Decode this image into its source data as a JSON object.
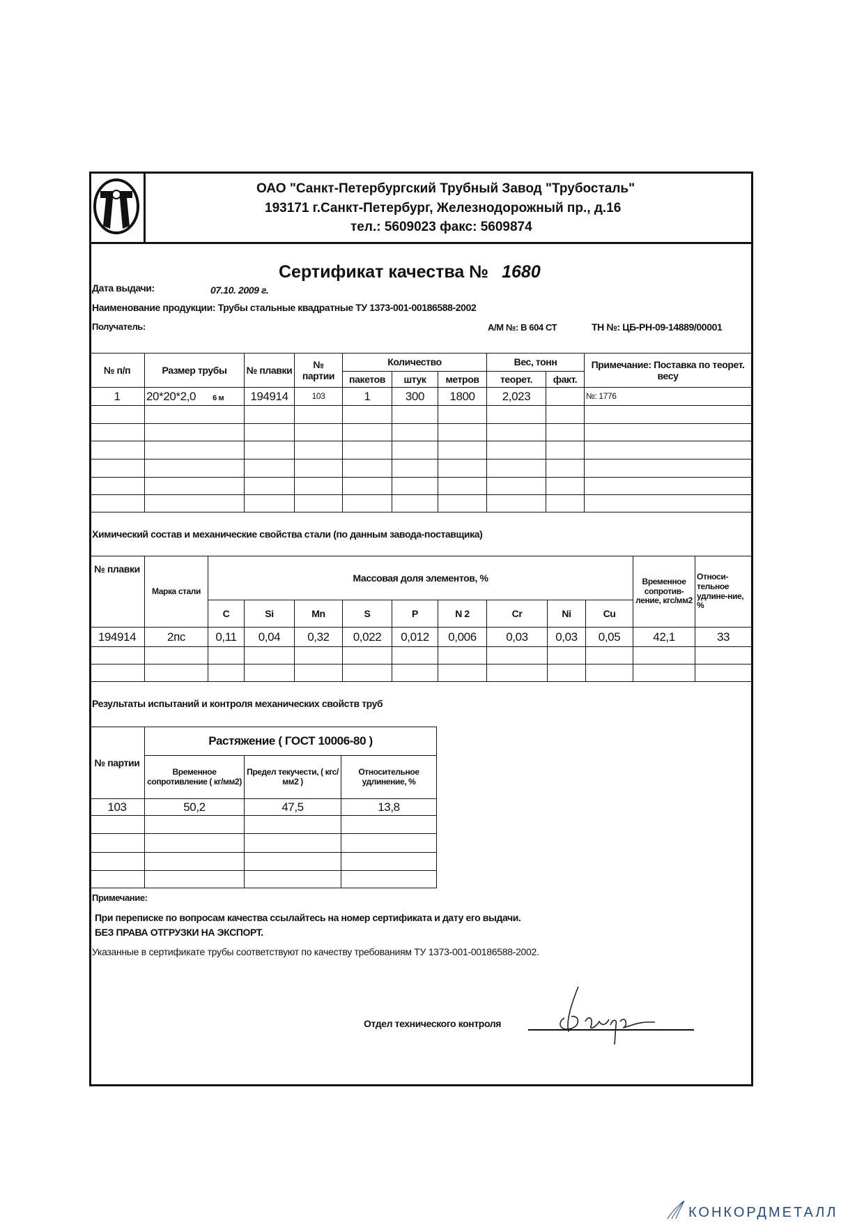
{
  "header": {
    "company": "ОАО \"Санкт-Петербургский Трубный Завод \"Трубосталь\"",
    "address": "193171   г.Санкт-Петербург, Железнодорожный пр., д.16",
    "phones": "тел.: 5609023    факс: 5609874",
    "logo_text": "ТТ"
  },
  "certificate": {
    "title": "Сертификат качества №",
    "number": "1680",
    "date_label": "Дата выдачи:",
    "date_value": "07.10. 2009 г.",
    "product_label": "Наименование продукции: Трубы стальные квадратные ТУ 1373-001-00186588-2002",
    "recipient_label": "Получатель:",
    "am": "А/М №: В 604 СТ",
    "tn": "ТН №: ЦБ-РН-09-14889/00001"
  },
  "shipment_table": {
    "headers": {
      "num": "№ п/п",
      "size": "Размер трубы",
      "melt": "№ плавки",
      "batch": "№ партии",
      "quantity": "Количество",
      "packages": "пакетов",
      "pieces": "штук",
      "meters": "метров",
      "weight": "Вес, тонн",
      "theor": "теорет.",
      "fact": "факт.",
      "note": "Примечание: Поставка по теорет. весу"
    },
    "rows": [
      {
        "num": "1",
        "size": "20*20*2,0",
        "length": "6 м",
        "melt": "194914",
        "batch": "103",
        "packages": "1",
        "pieces": "300",
        "meters": "1800",
        "theor": "2,023",
        "fact": "",
        "note": "№: 1776"
      }
    ]
  },
  "chem_section": {
    "heading": "Химический состав и механические свойства стали (по данным завода-поставщика)",
    "headers": {
      "melt": "№ плавки",
      "grade": "Марка стали",
      "mass": "Массовая доля элементов, %",
      "elements": [
        "C",
        "Si",
        "Mn",
        "S",
        "P",
        "N 2",
        "Cr",
        "Ni",
        "Cu"
      ],
      "strength": "Временное сопротив-ление, кгс/мм2",
      "elong": "Относи-тельное удлине-ние, %"
    },
    "rows": [
      {
        "melt": "194914",
        "grade": "2пс",
        "values": [
          "0,11",
          "0,04",
          "0,32",
          "0,022",
          "0,012",
          "0,006",
          "0,03",
          "0,03",
          "0,05"
        ],
        "strength": "42,1",
        "elong": "33"
      }
    ]
  },
  "test_section": {
    "heading": "Результаты испытаний  и контроля механических свойств труб",
    "headers": {
      "batch": "№ партии",
      "tension": "Растяжение   ( ГОСТ 10006-80 )",
      "strength": "Временное сопротивление ( кг/мм2)",
      "yield": "Предел текучести, ( кгс/мм2 )",
      "elong": "Относительное удлинение, %"
    },
    "rows": [
      {
        "batch": "103",
        "strength": "50,2",
        "yield": "47,5",
        "elong": "13,8"
      }
    ]
  },
  "notes": {
    "label": "Примечание:",
    "line1": "При переписке по вопросам качества ссылайтесь на номер сертификата и дату его выдачи.",
    "line2": "БЕЗ ПРАВА ОТГРУЗКИ НА ЭКСПОРТ.",
    "line3": "Указанные в сертификате трубы соответствуют по  качеству требованиям ТУ 1373-001-00186588-2002."
  },
  "signature": {
    "label": "Отдел технического контроля"
  },
  "watermark": {
    "text": "КОНКОРДМЕТАЛЛ",
    "color": "#2a4a7a"
  }
}
